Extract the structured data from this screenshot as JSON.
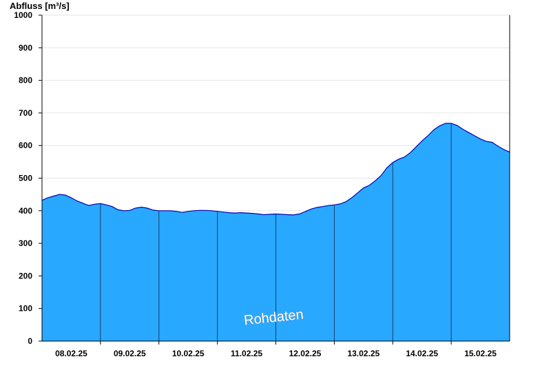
{
  "chart_data": {
    "type": "area",
    "ylabel": "Abfluss [m³/s]",
    "ylim": [
      0,
      1000
    ],
    "yticks": [
      0,
      100,
      200,
      300,
      400,
      500,
      600,
      700,
      800,
      900,
      1000
    ],
    "xlim": [
      0.0,
      8.0
    ],
    "xtick_labels": [
      "08.02.25",
      "09.02.25",
      "10.02.25",
      "11.02.25",
      "12.02.25",
      "13.02.25",
      "14.02.25",
      "15.02.25"
    ],
    "watermark": "Rohdaten",
    "grid": true,
    "colors": {
      "fill": "#29a8ff",
      "line": "#0000aa",
      "divider": "#1a3a6a",
      "grid": "#e6e6e6"
    },
    "series": [
      {
        "x": [
          0.0,
          0.1,
          0.2,
          0.3,
          0.4,
          0.5,
          0.6,
          0.7,
          0.8,
          0.9,
          1.0,
          1.1,
          1.2,
          1.3,
          1.4,
          1.5,
          1.6,
          1.7,
          1.8,
          1.9,
          2.0,
          2.1,
          2.2,
          2.3,
          2.4,
          2.5,
          2.6,
          2.7,
          2.8,
          2.9,
          3.0,
          3.1,
          3.2,
          3.3,
          3.4,
          3.5,
          3.6,
          3.7,
          3.8,
          3.9,
          4.0,
          4.1,
          4.2,
          4.3,
          4.4,
          4.5,
          4.6,
          4.7,
          4.8,
          4.9,
          5.0,
          5.1,
          5.2,
          5.3,
          5.4,
          5.5,
          5.6,
          5.7,
          5.8,
          5.9,
          6.0,
          6.1,
          6.2,
          6.3,
          6.4,
          6.5,
          6.6,
          6.7,
          6.8,
          6.9,
          7.0,
          7.1,
          7.2,
          7.3,
          7.4,
          7.5,
          7.6,
          7.7,
          7.8,
          7.9,
          8.0
        ],
        "values": [
          432,
          440,
          445,
          450,
          448,
          440,
          430,
          423,
          416,
          420,
          422,
          418,
          413,
          403,
          400,
          401,
          408,
          411,
          408,
          402,
          400,
          400,
          400,
          398,
          395,
          398,
          400,
          401,
          401,
          400,
          398,
          396,
          394,
          393,
          394,
          393,
          392,
          390,
          388,
          389,
          390,
          389,
          388,
          387,
          390,
          397,
          405,
          410,
          413,
          416,
          418,
          421,
          428,
          440,
          455,
          470,
          478,
          492,
          508,
          532,
          548,
          558,
          565,
          578,
          596,
          614,
          630,
          648,
          660,
          668,
          668,
          662,
          650,
          640,
          630,
          620,
          613,
          610,
          598,
          588,
          580
        ]
      }
    ]
  }
}
